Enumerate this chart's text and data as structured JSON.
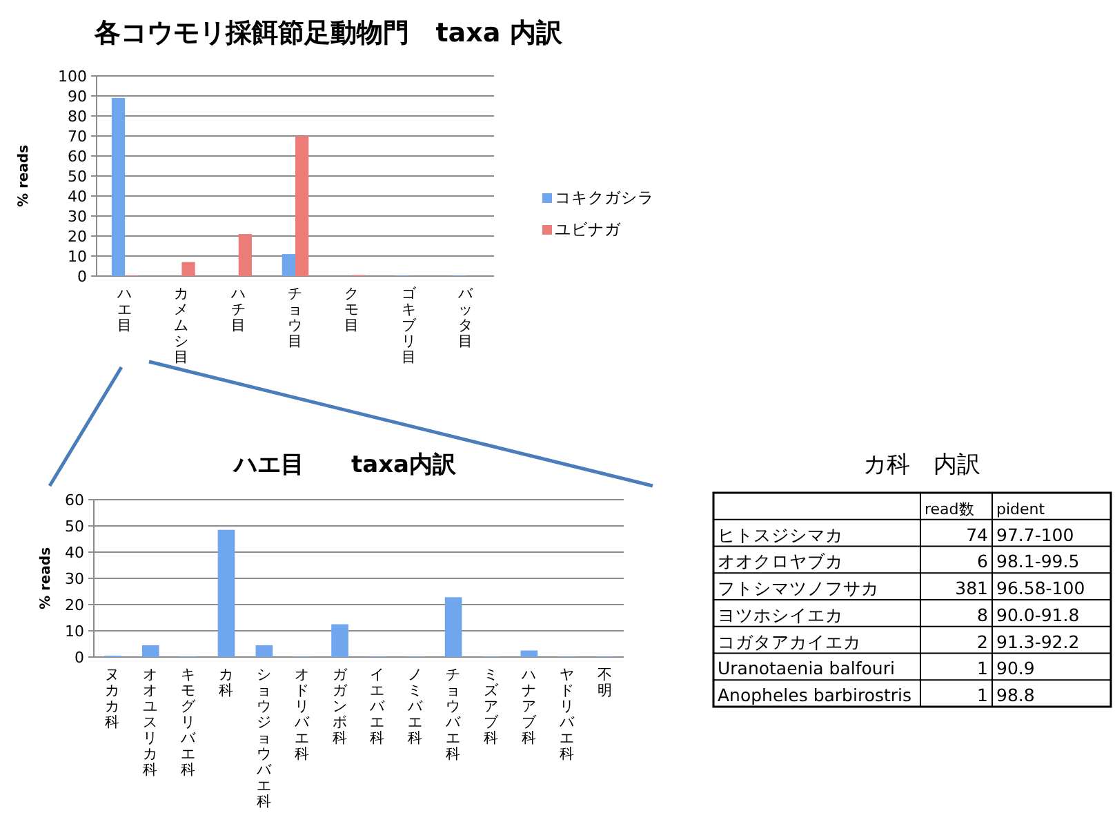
{
  "chart_data": [
    {
      "type": "bar",
      "title": "各コウモリ採餌節足動物門　taxa 内訳",
      "ylabel": "% reads",
      "categories": [
        "ハエ目",
        "カメムシ目",
        "ハチ目",
        "チョウ目",
        "クモ目",
        "ゴキブリ目",
        "バッタ目"
      ],
      "series": [
        {
          "name": "コキクガシラ",
          "color": "#6fa6ee",
          "values": [
            89,
            0,
            0,
            11,
            0,
            0.3,
            0.3
          ]
        },
        {
          "name": "ユビナガ",
          "color": "#ec7c78",
          "values": [
            0.3,
            7,
            21,
            70,
            0.5,
            0,
            0
          ]
        }
      ],
      "ylim": [
        0,
        100
      ],
      "yticks": [
        0,
        10,
        20,
        30,
        40,
        50,
        60,
        70,
        80,
        90,
        100
      ],
      "grid": "y",
      "legend": "right"
    },
    {
      "type": "bar",
      "title": "ハエ目　　taxa内訳",
      "ylabel": "% reads",
      "categories": [
        "ヌカカ科",
        "オオユスリカ科",
        "キモグリバエ科",
        "カ科",
        "ショウジョウバエ科",
        "オドリバエ科",
        "ガガンボ科",
        "イエバエ科",
        "ノミバエ科",
        "チョウバエ科",
        "ミズアブ科",
        "ハナアブ科",
        "ヤドリバエ科",
        "不明"
      ],
      "series": [
        {
          "color": "#6fa6ee",
          "values": [
            0.5,
            4.5,
            0.2,
            48.5,
            4.5,
            0.2,
            12.5,
            0.2,
            0.2,
            22.8,
            0.2,
            2.5,
            0.2,
            0.2
          ]
        }
      ],
      "ylim": [
        0,
        60
      ],
      "yticks": [
        0,
        10,
        20,
        30,
        40,
        50,
        60
      ],
      "grid": "y"
    },
    {
      "type": "other",
      "title": "カ科　内訳",
      "categories": [
        "ヒトスジシマカ",
        "オオクロヤブカ",
        "フトシマツノフサカ",
        "ヨツホシイエカ",
        "コガタアカイエカ",
        "Uranotaenia balfouri",
        "Anopheles barbirostris"
      ],
      "series": [
        {
          "name": "read数",
          "values": [
            74,
            6,
            381,
            8,
            2,
            1,
            1
          ]
        }
      ],
      "data_labels": true,
      "annotations": [
        "pident",
        "97.7-100",
        "98.1-99.5",
        "96.58-100",
        "90.0-91.8",
        "91.3-92.2",
        "90.9",
        "98.8"
      ]
    }
  ]
}
